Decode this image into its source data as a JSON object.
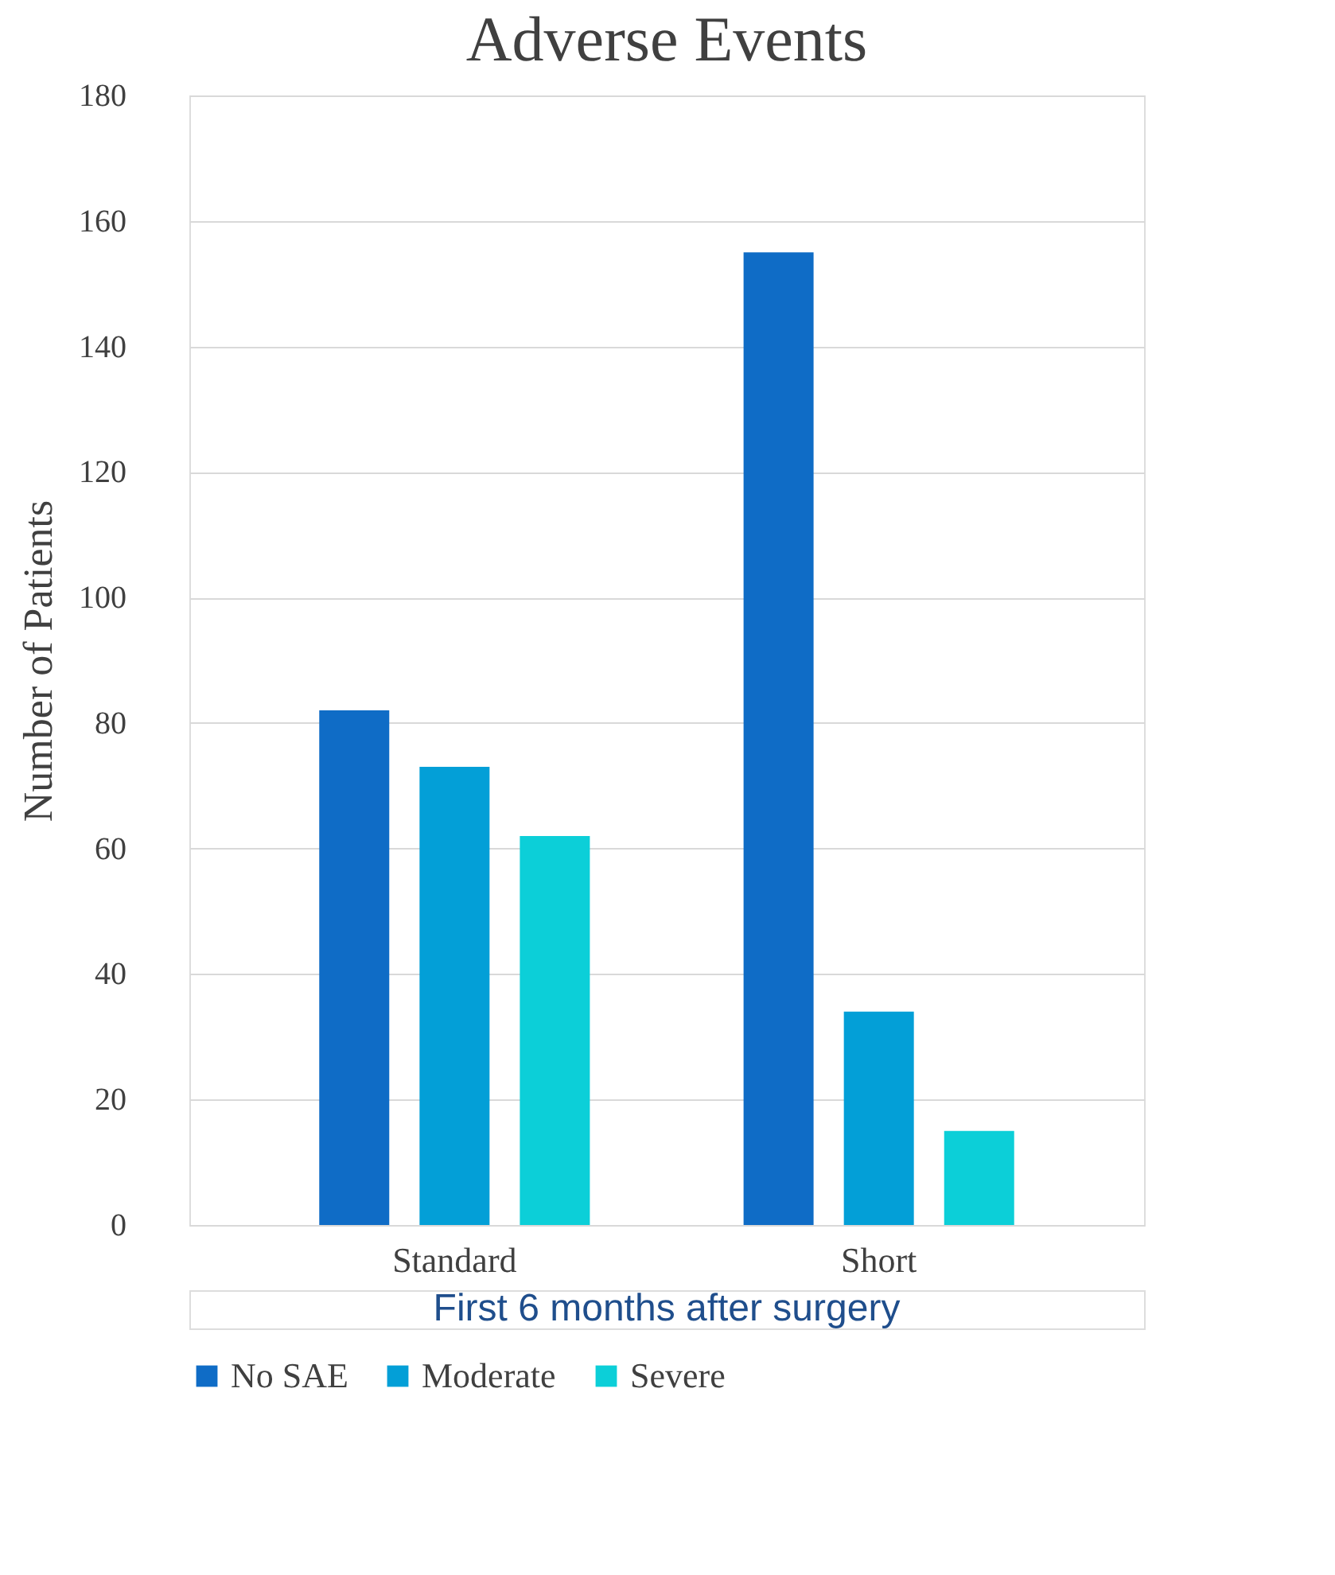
{
  "chart_data": {
    "type": "bar",
    "title": "Adverse Events",
    "ylabel": "Number of Patients",
    "categories": [
      "Standard",
      "Short"
    ],
    "series": [
      {
        "name": "No SAE",
        "color": "#0f6cc6",
        "values": [
          82,
          155
        ]
      },
      {
        "name": "Moderate",
        "color": "#039fd7",
        "values": [
          73,
          34
        ]
      },
      {
        "name": "Severe",
        "color": "#0ccfd8",
        "values": [
          62,
          15
        ]
      }
    ],
    "ylim": [
      0,
      180
    ],
    "yticks": [
      0,
      20,
      40,
      60,
      80,
      100,
      120,
      140,
      160,
      180
    ],
    "grid": "y",
    "legend": "bottom",
    "annotations": [
      "First 6 months after surgery"
    ]
  }
}
